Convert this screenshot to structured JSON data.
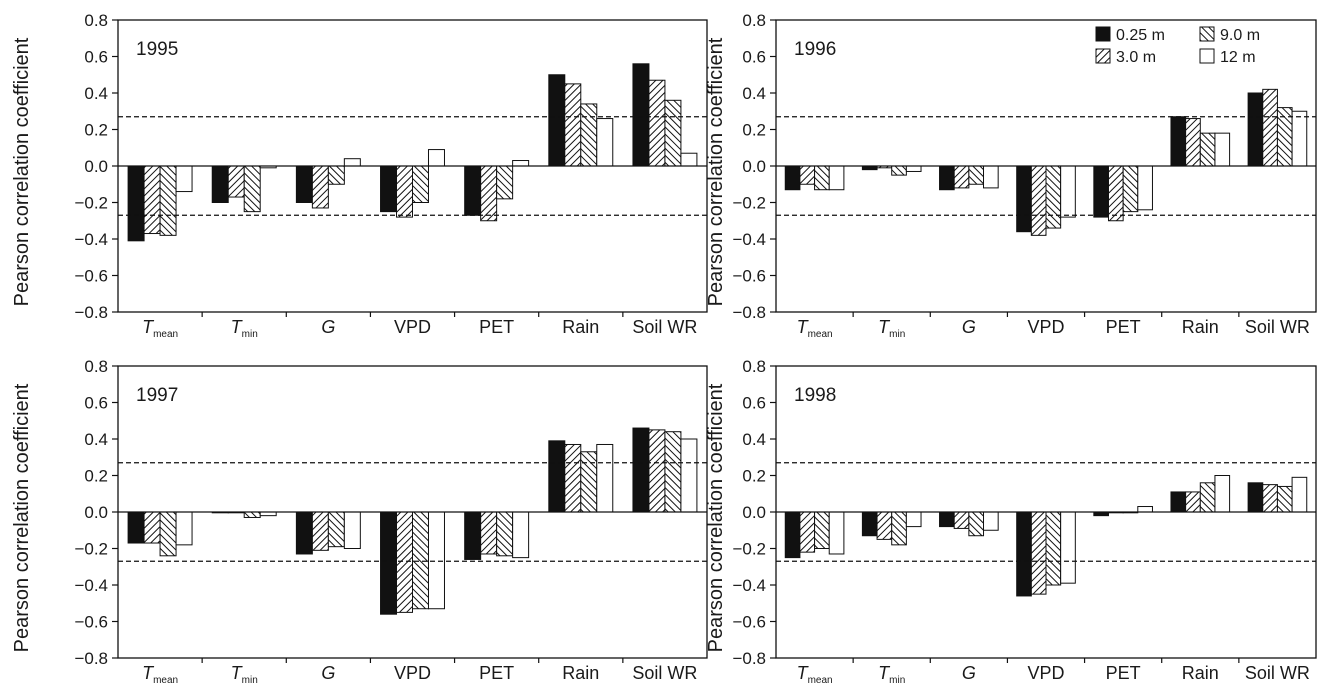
{
  "figure": {
    "ylabel": "Pearson correlation coefficient",
    "colors": {
      "ink": "#111111",
      "white": "#ffffff"
    }
  },
  "chart_data": [
    {
      "type": "bar",
      "title": "1995",
      "ylim": [
        -0.8,
        0.8
      ],
      "yticks": [
        "0.8",
        "0.6",
        "0.4",
        "0.2",
        "0.0",
        "−0.2",
        "−0.4",
        "−0.6",
        "−0.8"
      ],
      "ytick_values": [
        0.8,
        0.6,
        0.4,
        0.2,
        0.0,
        -0.2,
        -0.4,
        -0.6,
        -0.8
      ],
      "categories": [
        {
          "main": "T",
          "sub": "mean",
          "italic": true
        },
        {
          "main": "T",
          "sub": "min",
          "italic": true
        },
        {
          "main": "G",
          "sub": "",
          "italic": true
        },
        {
          "main": "VPD",
          "sub": "",
          "italic": false
        },
        {
          "main": "PET",
          "sub": "",
          "italic": false
        },
        {
          "main": "Rain",
          "sub": "",
          "italic": false
        },
        {
          "main": "Soil WR",
          "sub": "",
          "italic": false
        }
      ],
      "reference_lines": [
        0.27,
        -0.27
      ],
      "series": [
        {
          "name": "0.25 m",
          "pattern": "solid",
          "values": [
            -0.41,
            -0.2,
            -0.2,
            -0.25,
            -0.27,
            0.5,
            0.56
          ]
        },
        {
          "name": "3.0 m",
          "pattern": "diag-right",
          "values": [
            -0.37,
            -0.17,
            -0.23,
            -0.28,
            -0.3,
            0.45,
            0.47
          ]
        },
        {
          "name": "9.0 m",
          "pattern": "diag-left",
          "values": [
            -0.38,
            -0.25,
            -0.1,
            -0.2,
            -0.18,
            0.34,
            0.36
          ]
        },
        {
          "name": "12 m",
          "pattern": "open",
          "values": [
            -0.14,
            -0.01,
            0.04,
            0.09,
            0.03,
            0.26,
            0.07
          ]
        }
      ],
      "legend": false
    },
    {
      "type": "bar",
      "title": "1996",
      "ylim": [
        -0.8,
        0.8
      ],
      "yticks": [
        "0.8",
        "0.6",
        "0.4",
        "0.2",
        "0.0",
        "−0.2",
        "−0.4",
        "−0.6",
        "−0.8"
      ],
      "ytick_values": [
        0.8,
        0.6,
        0.4,
        0.2,
        0.0,
        -0.2,
        -0.4,
        -0.6,
        -0.8
      ],
      "categories": [
        {
          "main": "T",
          "sub": "mean",
          "italic": true
        },
        {
          "main": "T",
          "sub": "min",
          "italic": true
        },
        {
          "main": "G",
          "sub": "",
          "italic": true
        },
        {
          "main": "VPD",
          "sub": "",
          "italic": false
        },
        {
          "main": "PET",
          "sub": "",
          "italic": false
        },
        {
          "main": "Rain",
          "sub": "",
          "italic": false
        },
        {
          "main": "Soil WR",
          "sub": "",
          "italic": false
        }
      ],
      "reference_lines": [
        0.27,
        -0.27
      ],
      "series": [
        {
          "name": "0.25 m",
          "pattern": "solid",
          "values": [
            -0.13,
            -0.02,
            -0.13,
            -0.36,
            -0.28,
            0.27,
            0.4
          ]
        },
        {
          "name": "3.0 m",
          "pattern": "diag-right",
          "values": [
            -0.1,
            -0.01,
            -0.12,
            -0.38,
            -0.3,
            0.26,
            0.42
          ]
        },
        {
          "name": "9.0 m",
          "pattern": "diag-left",
          "values": [
            -0.13,
            -0.05,
            -0.1,
            -0.34,
            -0.25,
            0.18,
            0.32
          ]
        },
        {
          "name": "12 m",
          "pattern": "open",
          "values": [
            -0.13,
            -0.03,
            -0.12,
            -0.28,
            -0.24,
            0.18,
            0.3
          ]
        }
      ],
      "legend": true,
      "legend_position": "top-right"
    },
    {
      "type": "bar",
      "title": "1997",
      "ylim": [
        -0.8,
        0.8
      ],
      "yticks": [
        "0.8",
        "0.6",
        "0.4",
        "0.2",
        "0.0",
        "−0.2",
        "−0.4",
        "−0.6",
        "−0.8"
      ],
      "ytick_values": [
        0.8,
        0.6,
        0.4,
        0.2,
        0.0,
        -0.2,
        -0.4,
        -0.6,
        -0.8
      ],
      "categories": [
        {
          "main": "T",
          "sub": "mean",
          "italic": true
        },
        {
          "main": "T",
          "sub": "min",
          "italic": true
        },
        {
          "main": "G",
          "sub": "",
          "italic": true
        },
        {
          "main": "VPD",
          "sub": "",
          "italic": false
        },
        {
          "main": "PET",
          "sub": "",
          "italic": false
        },
        {
          "main": "Rain",
          "sub": "",
          "italic": false
        },
        {
          "main": "Soil WR",
          "sub": "",
          "italic": false
        }
      ],
      "reference_lines": [
        0.27,
        -0.27
      ],
      "series": [
        {
          "name": "0.25 m",
          "pattern": "solid",
          "values": [
            -0.17,
            0.0,
            -0.23,
            -0.56,
            -0.26,
            0.39,
            0.46
          ]
        },
        {
          "name": "3.0 m",
          "pattern": "diag-right",
          "values": [
            -0.17,
            0.0,
            -0.21,
            -0.55,
            -0.23,
            0.37,
            0.45
          ]
        },
        {
          "name": "9.0 m",
          "pattern": "diag-left",
          "values": [
            -0.24,
            -0.03,
            -0.19,
            -0.53,
            -0.24,
            0.33,
            0.44
          ]
        },
        {
          "name": "12 m",
          "pattern": "open",
          "values": [
            -0.18,
            -0.02,
            -0.2,
            -0.53,
            -0.25,
            0.37,
            0.4
          ]
        }
      ],
      "legend": false
    },
    {
      "type": "bar",
      "title": "1998",
      "ylim": [
        -0.8,
        0.8
      ],
      "yticks": [
        "0.8",
        "0.6",
        "0.4",
        "0.2",
        "0.0",
        "−0.2",
        "−0.4",
        "−0.6",
        "−0.8"
      ],
      "ytick_values": [
        0.8,
        0.6,
        0.4,
        0.2,
        0.0,
        -0.2,
        -0.4,
        -0.6,
        -0.8
      ],
      "categories": [
        {
          "main": "T",
          "sub": "mean",
          "italic": true
        },
        {
          "main": "T",
          "sub": "min",
          "italic": true
        },
        {
          "main": "G",
          "sub": "",
          "italic": true
        },
        {
          "main": "VPD",
          "sub": "",
          "italic": false
        },
        {
          "main": "PET",
          "sub": "",
          "italic": false
        },
        {
          "main": "Rain",
          "sub": "",
          "italic": false
        },
        {
          "main": "Soil WR",
          "sub": "",
          "italic": false
        }
      ],
      "reference_lines": [
        0.27,
        -0.27
      ],
      "series": [
        {
          "name": "0.25 m",
          "pattern": "solid",
          "values": [
            -0.25,
            -0.13,
            -0.08,
            -0.46,
            -0.02,
            0.11,
            0.16
          ]
        },
        {
          "name": "3.0 m",
          "pattern": "diag-right",
          "values": [
            -0.22,
            -0.15,
            -0.09,
            -0.45,
            0.0,
            0.11,
            0.15
          ]
        },
        {
          "name": "9.0 m",
          "pattern": "diag-left",
          "values": [
            -0.2,
            -0.18,
            -0.13,
            -0.4,
            0.0,
            0.16,
            0.14
          ]
        },
        {
          "name": "12 m",
          "pattern": "open",
          "values": [
            -0.23,
            -0.08,
            -0.1,
            -0.39,
            0.03,
            0.2,
            0.19
          ]
        }
      ],
      "legend": false
    }
  ]
}
